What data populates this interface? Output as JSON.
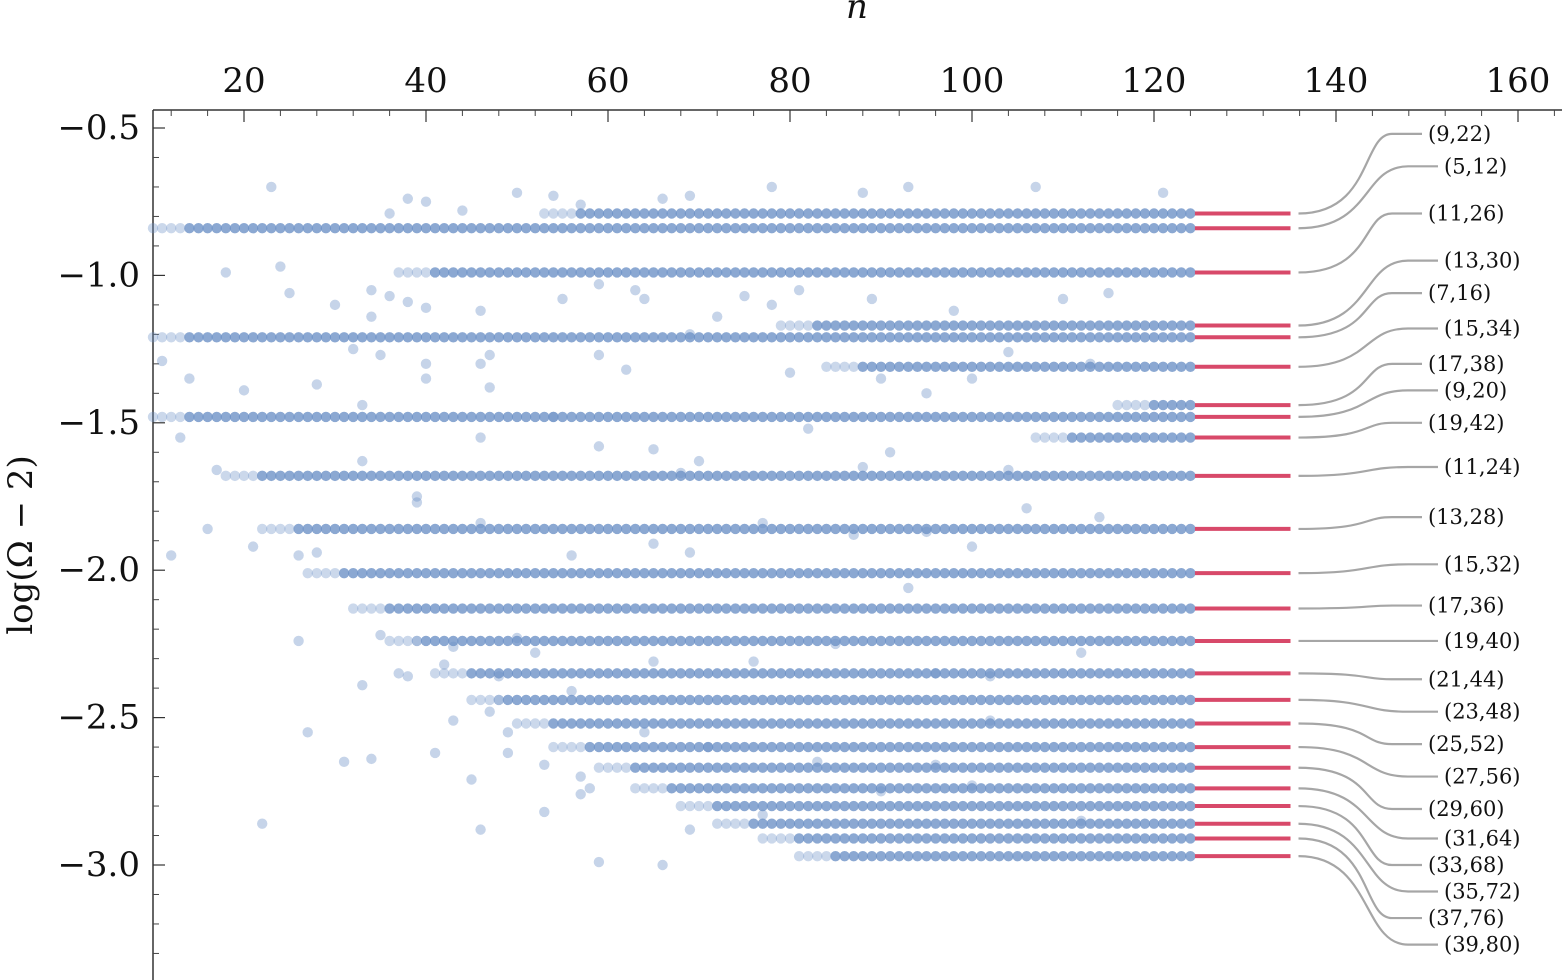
{
  "chart_data": {
    "type": "scatter",
    "title": "",
    "xlabel": "n",
    "ylabel": "log(Ω − 2)",
    "xlim": [
      10,
      165
    ],
    "ylim": [
      -3.4,
      -0.45
    ],
    "x_ticks": [
      20,
      40,
      60,
      80,
      100,
      120,
      140,
      160
    ],
    "x_tick_labels": [
      "20",
      "40",
      "60",
      "80",
      "100",
      "120",
      "140",
      "160"
    ],
    "y_ticks": [
      -0.5,
      -1.0,
      -1.5,
      -2.0,
      -2.5,
      -3.0
    ],
    "y_tick_labels": [
      "−0.5",
      "−1.0",
      "−1.5",
      "−2.0",
      "−2.5",
      "−3.0"
    ],
    "x_axis_position": "top",
    "grid": false,
    "point_color": "#6a8fc5",
    "limit_color": "#d8496a",
    "connector_color": "#a6a6a6",
    "limit_x": [
      124.5,
      135
    ],
    "series": [
      {
        "label": "(9,22)",
        "start": 53,
        "limit": -0.79
      },
      {
        "label": "(5,12)",
        "start": 10,
        "limit": -0.84
      },
      {
        "label": "(11,26)",
        "start": 37,
        "limit": -0.99
      },
      {
        "label": "(13,30)",
        "start": 79,
        "limit": -1.17
      },
      {
        "label": "(7,16)",
        "start": 10,
        "limit": -1.21
      },
      {
        "label": "(15,34)",
        "start": 84,
        "limit": -1.31
      },
      {
        "label": "(17,38)",
        "start": 116,
        "limit": -1.44
      },
      {
        "label": "(9,20)",
        "start": 10,
        "limit": -1.48
      },
      {
        "label": "(19,42)",
        "start": 107,
        "limit": -1.55
      },
      {
        "label": "(11,24)",
        "start": 18,
        "limit": -1.68
      },
      {
        "label": "(13,28)",
        "start": 22,
        "limit": -1.86
      },
      {
        "label": "(15,32)",
        "start": 27,
        "limit": -2.01
      },
      {
        "label": "(17,36)",
        "start": 32,
        "limit": -2.13
      },
      {
        "label": "(19,40)",
        "start": 36,
        "limit": -2.24
      },
      {
        "label": "(21,44)",
        "start": 41,
        "limit": -2.35
      },
      {
        "label": "(23,48)",
        "start": 45,
        "limit": -2.44
      },
      {
        "label": "(25,52)",
        "start": 50,
        "limit": -2.52
      },
      {
        "label": "(27,56)",
        "start": 54,
        "limit": -2.6
      },
      {
        "label": "(29,60)",
        "start": 59,
        "limit": -2.67
      },
      {
        "label": "(31,64)",
        "start": 63,
        "limit": -2.74
      },
      {
        "label": "(33,68)",
        "start": 68,
        "limit": -2.8
      },
      {
        "label": "(35,72)",
        "start": 72,
        "limit": -2.86
      },
      {
        "label": "(37,76)",
        "start": 77,
        "limit": -2.91
      },
      {
        "label": "(39,80)",
        "start": 81,
        "limit": -2.97
      }
    ],
    "label_positions": [
      -0.52,
      -0.63,
      -0.79,
      -0.95,
      -1.06,
      -1.18,
      -1.3,
      -1.39,
      -1.5,
      -1.65,
      -1.82,
      -1.98,
      -2.12,
      -2.24,
      -2.37,
      -2.48,
      -2.59,
      -2.7,
      -2.81,
      -2.91,
      -3.0,
      -3.09,
      -3.18,
      -3.27
    ],
    "scatter": [
      [
        23,
        -0.7
      ],
      [
        38,
        -0.74
      ],
      [
        50,
        -0.72
      ],
      [
        54,
        -0.73
      ],
      [
        44,
        -0.78
      ],
      [
        36,
        -0.79
      ],
      [
        40,
        -0.75
      ],
      [
        57,
        -0.76
      ],
      [
        66,
        -0.74
      ],
      [
        69,
        -0.73
      ],
      [
        78,
        -0.7
      ],
      [
        88,
        -0.72
      ],
      [
        93,
        -0.7
      ],
      [
        107,
        -0.7
      ],
      [
        121,
        -0.72
      ],
      [
        18,
        -0.99
      ],
      [
        24,
        -0.97
      ],
      [
        36,
        -1.07
      ],
      [
        34,
        -1.05
      ],
      [
        25,
        -1.06
      ],
      [
        30,
        -1.1
      ],
      [
        38,
        -1.09
      ],
      [
        40,
        -1.11
      ],
      [
        46,
        -1.12
      ],
      [
        34,
        -1.14
      ],
      [
        64,
        -1.08
      ],
      [
        63,
        -1.05
      ],
      [
        59,
        -1.03
      ],
      [
        55,
        -1.08
      ],
      [
        75,
        -1.07
      ],
      [
        78,
        -1.1
      ],
      [
        81,
        -1.05
      ],
      [
        89,
        -1.08
      ],
      [
        98,
        -1.12
      ],
      [
        110,
        -1.08
      ],
      [
        115,
        -1.06
      ],
      [
        20,
        -1.39
      ],
      [
        28,
        -1.37
      ],
      [
        33,
        -1.44
      ],
      [
        35,
        -1.27
      ],
      [
        32,
        -1.25
      ],
      [
        40,
        -1.3
      ],
      [
        40,
        -1.35
      ],
      [
        47,
        -1.38
      ],
      [
        47,
        -1.27
      ],
      [
        46,
        -1.3
      ],
      [
        62,
        -1.32
      ],
      [
        59,
        -1.27
      ],
      [
        69,
        -1.2
      ],
      [
        72,
        -1.14
      ],
      [
        80,
        -1.33
      ],
      [
        90,
        -1.35
      ],
      [
        95,
        -1.4
      ],
      [
        100,
        -1.35
      ],
      [
        104,
        -1.26
      ],
      [
        113,
        -1.3
      ],
      [
        13,
        -1.55
      ],
      [
        14,
        -1.35
      ],
      [
        11,
        -1.29
      ],
      [
        17,
        -1.66
      ],
      [
        33,
        -1.63
      ],
      [
        39,
        -1.75
      ],
      [
        46,
        -1.55
      ],
      [
        54,
        -1.48
      ],
      [
        59,
        -1.58
      ],
      [
        65,
        -1.59
      ],
      [
        68,
        -1.67
      ],
      [
        70,
        -1.63
      ],
      [
        82,
        -1.52
      ],
      [
        88,
        -1.65
      ],
      [
        91,
        -1.6
      ],
      [
        104,
        -1.66
      ],
      [
        106,
        -1.79
      ],
      [
        16,
        -1.86
      ],
      [
        12,
        -1.95
      ],
      [
        21,
        -1.92
      ],
      [
        26,
        -1.95
      ],
      [
        28,
        -1.94
      ],
      [
        39,
        -1.77
      ],
      [
        46,
        -1.84
      ],
      [
        56,
        -1.95
      ],
      [
        65,
        -1.91
      ],
      [
        69,
        -1.94
      ],
      [
        77,
        -1.84
      ],
      [
        87,
        -1.88
      ],
      [
        95,
        -1.87
      ],
      [
        100,
        -1.92
      ],
      [
        114,
        -1.82
      ],
      [
        26,
        -2.24
      ],
      [
        35,
        -2.22
      ],
      [
        37,
        -2.35
      ],
      [
        38,
        -2.36
      ],
      [
        33,
        -2.39
      ],
      [
        39,
        -2.24
      ],
      [
        42,
        -2.32
      ],
      [
        43,
        -2.26
      ],
      [
        48,
        -2.36
      ],
      [
        50,
        -2.23
      ],
      [
        52,
        -2.28
      ],
      [
        48,
        -2.44
      ],
      [
        56,
        -2.41
      ],
      [
        65,
        -2.31
      ],
      [
        76,
        -2.31
      ],
      [
        85,
        -2.25
      ],
      [
        93,
        -2.06
      ],
      [
        96,
        -2.35
      ],
      [
        102,
        -2.36
      ],
      [
        112,
        -2.28
      ],
      [
        27,
        -2.55
      ],
      [
        31,
        -2.65
      ],
      [
        34,
        -2.64
      ],
      [
        41,
        -2.62
      ],
      [
        45,
        -2.71
      ],
      [
        43,
        -2.51
      ],
      [
        47,
        -2.48
      ],
      [
        49,
        -2.55
      ],
      [
        49,
        -2.62
      ],
      [
        53,
        -2.66
      ],
      [
        57,
        -2.7
      ],
      [
        58,
        -2.74
      ],
      [
        64,
        -2.55
      ],
      [
        71,
        -2.6
      ],
      [
        83,
        -2.65
      ],
      [
        96,
        -2.66
      ],
      [
        102,
        -2.51
      ],
      [
        22,
        -2.86
      ],
      [
        46,
        -2.88
      ],
      [
        53,
        -2.82
      ],
      [
        57,
        -2.76
      ],
      [
        59,
        -2.99
      ],
      [
        66,
        -3.0
      ],
      [
        69,
        -2.88
      ],
      [
        77,
        -2.83
      ],
      [
        90,
        -2.75
      ],
      [
        100,
        -2.73
      ],
      [
        112,
        -2.85
      ]
    ]
  }
}
